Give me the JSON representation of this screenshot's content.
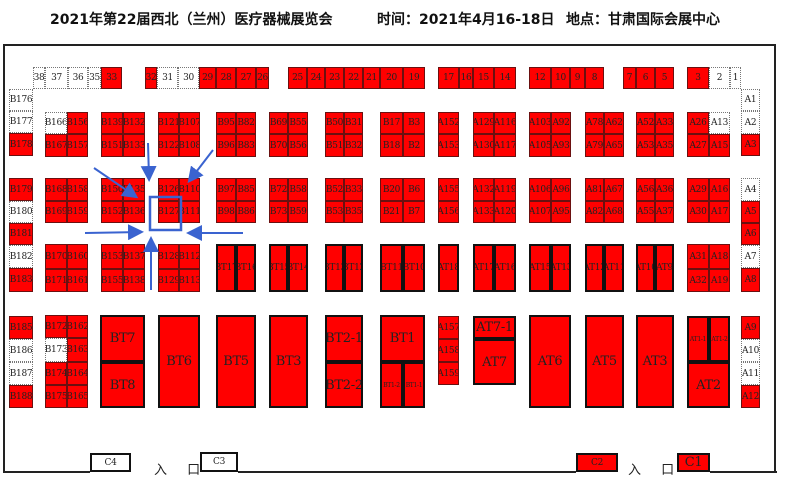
{
  "header": {
    "event_title": "2021年第22届西北（兰州）医疗器械展览会",
    "time": "时间：2021年4月16-18日",
    "venue": "地点：甘肃国际会展中心"
  },
  "colors": {
    "sold": "#ff0000",
    "available": "#ffffff",
    "highlight_arrow": "#3a63d0"
  },
  "legend_status": {
    "sold": "red",
    "available": "white"
  },
  "entrances": [
    "入 口",
    "入 口"
  ],
  "highlight": {
    "booth": "B127"
  },
  "booths": [
    {
      "label": "38",
      "status": "available"
    },
    {
      "label": "37",
      "status": "available"
    },
    {
      "label": "36",
      "status": "available"
    },
    {
      "label": "35",
      "status": "available"
    },
    {
      "label": "33",
      "status": "sold"
    },
    {
      "label": "32",
      "status": "sold"
    },
    {
      "label": "31",
      "status": "available"
    },
    {
      "label": "30",
      "status": "available"
    },
    {
      "label": "29",
      "status": "sold"
    },
    {
      "label": "28",
      "status": "sold"
    },
    {
      "label": "27",
      "status": "sold"
    },
    {
      "label": "26",
      "status": "sold"
    },
    {
      "label": "25",
      "status": "sold"
    },
    {
      "label": "24",
      "status": "sold"
    },
    {
      "label": "23",
      "status": "sold"
    },
    {
      "label": "22",
      "status": "sold"
    },
    {
      "label": "21",
      "status": "sold"
    },
    {
      "label": "20",
      "status": "sold"
    },
    {
      "label": "19",
      "status": "sold"
    },
    {
      "label": "17",
      "status": "sold"
    },
    {
      "label": "16",
      "status": "sold"
    },
    {
      "label": "15",
      "status": "sold"
    },
    {
      "label": "14",
      "status": "sold"
    },
    {
      "label": "12",
      "status": "sold"
    },
    {
      "label": "10",
      "status": "sold"
    },
    {
      "label": "9",
      "status": "sold"
    },
    {
      "label": "8",
      "status": "sold"
    },
    {
      "label": "7",
      "status": "sold"
    },
    {
      "label": "6",
      "status": "sold"
    },
    {
      "label": "5",
      "status": "sold"
    },
    {
      "label": "3",
      "status": "sold"
    },
    {
      "label": "2",
      "status": "available"
    },
    {
      "label": "1",
      "status": "available"
    },
    {
      "label": "B176",
      "status": "available"
    },
    {
      "label": "B177",
      "status": "available"
    },
    {
      "label": "B178",
      "status": "sold"
    },
    {
      "label": "B179",
      "status": "sold"
    },
    {
      "label": "B180",
      "status": "available"
    },
    {
      "label": "B181",
      "status": "sold"
    },
    {
      "label": "B182",
      "status": "available"
    },
    {
      "label": "B183",
      "status": "sold"
    },
    {
      "label": "B185",
      "status": "sold"
    },
    {
      "label": "B186",
      "status": "available"
    },
    {
      "label": "B187",
      "status": "available"
    },
    {
      "label": "B188",
      "status": "sold"
    },
    {
      "label": "B166",
      "status": "available"
    },
    {
      "label": "B156",
      "status": "sold"
    },
    {
      "label": "B167",
      "status": "sold"
    },
    {
      "label": "B157",
      "status": "sold"
    },
    {
      "label": "B139",
      "status": "sold"
    },
    {
      "label": "B132",
      "status": "sold"
    },
    {
      "label": "B151",
      "status": "sold"
    },
    {
      "label": "B133",
      "status": "sold"
    },
    {
      "label": "B121",
      "status": "sold"
    },
    {
      "label": "B107",
      "status": "sold"
    },
    {
      "label": "B122",
      "status": "sold"
    },
    {
      "label": "B108",
      "status": "sold"
    },
    {
      "label": "B95",
      "status": "sold"
    },
    {
      "label": "B82",
      "status": "sold"
    },
    {
      "label": "B96",
      "status": "sold"
    },
    {
      "label": "B83",
      "status": "sold"
    },
    {
      "label": "B69",
      "status": "sold"
    },
    {
      "label": "B55",
      "status": "sold"
    },
    {
      "label": "B70",
      "status": "sold"
    },
    {
      "label": "B56",
      "status": "sold"
    },
    {
      "label": "B50",
      "status": "sold"
    },
    {
      "label": "B31",
      "status": "sold"
    },
    {
      "label": "B51",
      "status": "sold"
    },
    {
      "label": "B32",
      "status": "sold"
    },
    {
      "label": "B17",
      "status": "sold"
    },
    {
      "label": "B3",
      "status": "sold"
    },
    {
      "label": "B18",
      "status": "sold"
    },
    {
      "label": "B2",
      "status": "sold"
    },
    {
      "label": "A152",
      "status": "sold"
    },
    {
      "label": "A153",
      "status": "sold"
    },
    {
      "label": "A129",
      "status": "sold"
    },
    {
      "label": "A116",
      "status": "sold"
    },
    {
      "label": "A130",
      "status": "sold"
    },
    {
      "label": "A117",
      "status": "sold"
    },
    {
      "label": "A103",
      "status": "sold"
    },
    {
      "label": "A92",
      "status": "sold"
    },
    {
      "label": "A105",
      "status": "sold"
    },
    {
      "label": "A93",
      "status": "sold"
    },
    {
      "label": "A78",
      "status": "sold"
    },
    {
      "label": "A62",
      "status": "sold"
    },
    {
      "label": "A79",
      "status": "sold"
    },
    {
      "label": "A65",
      "status": "sold"
    },
    {
      "label": "A52",
      "status": "sold"
    },
    {
      "label": "A33",
      "status": "sold"
    },
    {
      "label": "A53",
      "status": "sold"
    },
    {
      "label": "A35",
      "status": "sold"
    },
    {
      "label": "A26",
      "status": "sold"
    },
    {
      "label": "A13",
      "status": "available"
    },
    {
      "label": "A27",
      "status": "sold"
    },
    {
      "label": "A15",
      "status": "sold"
    },
    {
      "label": "A1",
      "status": "available"
    },
    {
      "label": "A2",
      "status": "available"
    },
    {
      "label": "A3",
      "status": "sold"
    },
    {
      "label": "A4",
      "status": "available"
    },
    {
      "label": "A5",
      "status": "sold"
    },
    {
      "label": "A6",
      "status": "sold"
    },
    {
      "label": "A7",
      "status": "available"
    },
    {
      "label": "A8",
      "status": "sold"
    },
    {
      "label": "A9",
      "status": "sold"
    },
    {
      "label": "A10",
      "status": "available"
    },
    {
      "label": "A11",
      "status": "available"
    },
    {
      "label": "A12",
      "status": "sold"
    },
    {
      "label": "B168",
      "status": "sold"
    },
    {
      "label": "B158",
      "status": "sold"
    },
    {
      "label": "B169",
      "status": "sold"
    },
    {
      "label": "B159",
      "status": "sold"
    },
    {
      "label": "B150",
      "status": "sold"
    },
    {
      "label": "B135",
      "status": "sold"
    },
    {
      "label": "B152",
      "status": "sold"
    },
    {
      "label": "B136",
      "status": "sold"
    },
    {
      "label": "B126",
      "status": "sold"
    },
    {
      "label": "B110",
      "status": "sold"
    },
    {
      "label": "B127",
      "status": "sold"
    },
    {
      "label": "B111",
      "status": "sold"
    },
    {
      "label": "B97",
      "status": "sold"
    },
    {
      "label": "B85",
      "status": "sold"
    },
    {
      "label": "B98",
      "status": "sold"
    },
    {
      "label": "B86",
      "status": "sold"
    },
    {
      "label": "B72",
      "status": "sold"
    },
    {
      "label": "B58",
      "status": "sold"
    },
    {
      "label": "B73",
      "status": "sold"
    },
    {
      "label": "B59",
      "status": "sold"
    },
    {
      "label": "B52",
      "status": "sold"
    },
    {
      "label": "B33",
      "status": "sold"
    },
    {
      "label": "B53",
      "status": "sold"
    },
    {
      "label": "B35",
      "status": "sold"
    },
    {
      "label": "B20",
      "status": "sold"
    },
    {
      "label": "B6",
      "status": "sold"
    },
    {
      "label": "B21",
      "status": "sold"
    },
    {
      "label": "B7",
      "status": "sold"
    },
    {
      "label": "A155",
      "status": "sold"
    },
    {
      "label": "A156",
      "status": "sold"
    },
    {
      "label": "A132",
      "status": "sold"
    },
    {
      "label": "A119",
      "status": "sold"
    },
    {
      "label": "A133",
      "status": "sold"
    },
    {
      "label": "A120",
      "status": "sold"
    },
    {
      "label": "A106",
      "status": "sold"
    },
    {
      "label": "A96",
      "status": "sold"
    },
    {
      "label": "A107",
      "status": "sold"
    },
    {
      "label": "A95",
      "status": "sold"
    },
    {
      "label": "A81",
      "status": "sold"
    },
    {
      "label": "A67",
      "status": "sold"
    },
    {
      "label": "A82",
      "status": "sold"
    },
    {
      "label": "A68",
      "status": "sold"
    },
    {
      "label": "A56",
      "status": "sold"
    },
    {
      "label": "A36",
      "status": "sold"
    },
    {
      "label": "A55",
      "status": "sold"
    },
    {
      "label": "A37",
      "status": "sold"
    },
    {
      "label": "A29",
      "status": "sold"
    },
    {
      "label": "A16",
      "status": "sold"
    },
    {
      "label": "A30",
      "status": "sold"
    },
    {
      "label": "A17",
      "status": "sold"
    },
    {
      "label": "B170",
      "status": "sold"
    },
    {
      "label": "B160",
      "status": "sold"
    },
    {
      "label": "B171",
      "status": "sold"
    },
    {
      "label": "B161",
      "status": "sold"
    },
    {
      "label": "B153",
      "status": "sold"
    },
    {
      "label": "B137",
      "status": "sold"
    },
    {
      "label": "B155",
      "status": "sold"
    },
    {
      "label": "B138",
      "status": "sold"
    },
    {
      "label": "B128",
      "status": "sold"
    },
    {
      "label": "B112",
      "status": "sold"
    },
    {
      "label": "B129",
      "status": "sold"
    },
    {
      "label": "B113",
      "status": "sold"
    },
    {
      "label": "BT17",
      "status": "sold"
    },
    {
      "label": "BT16",
      "status": "sold"
    },
    {
      "label": "BT15",
      "status": "sold"
    },
    {
      "label": "BT14",
      "status": "sold"
    },
    {
      "label": "BT13",
      "status": "sold"
    },
    {
      "label": "BT12",
      "status": "sold"
    },
    {
      "label": "BT11",
      "status": "sold"
    },
    {
      "label": "BT10",
      "status": "sold"
    },
    {
      "label": "AT18",
      "status": "sold"
    },
    {
      "label": "AT17",
      "status": "sold"
    },
    {
      "label": "AT16",
      "status": "sold"
    },
    {
      "label": "AT15",
      "status": "sold"
    },
    {
      "label": "AT13",
      "status": "sold"
    },
    {
      "label": "AT12",
      "status": "sold"
    },
    {
      "label": "AT11",
      "status": "sold"
    },
    {
      "label": "AT10",
      "status": "sold"
    },
    {
      "label": "AT9",
      "status": "sold"
    },
    {
      "label": "A31",
      "status": "sold"
    },
    {
      "label": "A18",
      "status": "sold"
    },
    {
      "label": "A32",
      "status": "sold"
    },
    {
      "label": "A19",
      "status": "sold"
    },
    {
      "label": "B172",
      "status": "sold"
    },
    {
      "label": "B162",
      "status": "sold"
    },
    {
      "label": "B173",
      "status": "available"
    },
    {
      "label": "B163",
      "status": "sold"
    },
    {
      "label": "B174",
      "status": "sold"
    },
    {
      "label": "B164",
      "status": "sold"
    },
    {
      "label": "B175",
      "status": "sold"
    },
    {
      "label": "B165",
      "status": "sold"
    },
    {
      "label": "BT7",
      "status": "sold"
    },
    {
      "label": "BT8",
      "status": "sold"
    },
    {
      "label": "BT6",
      "status": "sold"
    },
    {
      "label": "BT5",
      "status": "sold"
    },
    {
      "label": "BT3",
      "status": "sold"
    },
    {
      "label": "BT2-1",
      "status": "sold"
    },
    {
      "label": "BT2-2",
      "status": "sold"
    },
    {
      "label": "BT1",
      "status": "sold"
    },
    {
      "label": "BT1-2",
      "status": "sold"
    },
    {
      "label": "BT1-1",
      "status": "sold"
    },
    {
      "label": "A157",
      "status": "sold"
    },
    {
      "label": "A158",
      "status": "sold"
    },
    {
      "label": "A159",
      "status": "sold"
    },
    {
      "label": "AT7-1",
      "status": "sold"
    },
    {
      "label": "AT7",
      "status": "sold"
    },
    {
      "label": "AT6",
      "status": "sold"
    },
    {
      "label": "AT5",
      "status": "sold"
    },
    {
      "label": "AT3",
      "status": "sold"
    },
    {
      "label": "AT1-1",
      "status": "sold"
    },
    {
      "label": "AT1-2",
      "status": "sold"
    },
    {
      "label": "AT2",
      "status": "sold"
    },
    {
      "label": "C4",
      "status": "available"
    },
    {
      "label": "C3",
      "status": "available"
    },
    {
      "label": "C2",
      "status": "sold"
    },
    {
      "label": "C1",
      "status": "sold"
    }
  ]
}
